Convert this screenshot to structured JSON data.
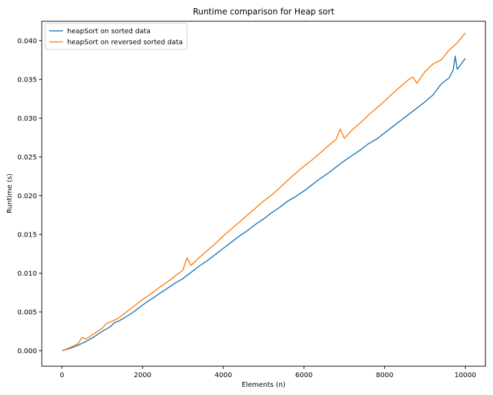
{
  "chart_data": {
    "type": "line",
    "title": "Runtime comparison for Heap sort",
    "xlabel": "Elements (n)",
    "ylabel": "Runtime (s)",
    "xlim": [
      -500,
      10500
    ],
    "ylim": [
      -0.002,
      0.0425
    ],
    "xticks": [
      0,
      2000,
      4000,
      6000,
      8000,
      10000
    ],
    "xtick_labels": [
      "0",
      "2000",
      "4000",
      "6000",
      "8000",
      "10000"
    ],
    "yticks": [
      0.0,
      0.005,
      0.01,
      0.015,
      0.02,
      0.025,
      0.03,
      0.035,
      0.04
    ],
    "ytick_labels": [
      "0.000",
      "0.005",
      "0.010",
      "0.015",
      "0.020",
      "0.025",
      "0.030",
      "0.035",
      "0.040"
    ],
    "grid": false,
    "legend_position": "top-left",
    "series": [
      {
        "name": "heapSort on sorted data",
        "color": "#1f77b4",
        "points": [
          [
            0,
            0.0
          ],
          [
            200,
            0.0003
          ],
          [
            400,
            0.0007
          ],
          [
            600,
            0.0012
          ],
          [
            800,
            0.0018
          ],
          [
            1000,
            0.0025
          ],
          [
            1200,
            0.0031
          ],
          [
            1300,
            0.0036
          ],
          [
            1400,
            0.0038
          ],
          [
            1500,
            0.0041
          ],
          [
            1600,
            0.0044
          ],
          [
            1800,
            0.0051
          ],
          [
            2000,
            0.0059
          ],
          [
            2200,
            0.0066
          ],
          [
            2400,
            0.0073
          ],
          [
            2600,
            0.008
          ],
          [
            2800,
            0.0087
          ],
          [
            3000,
            0.0093
          ],
          [
            3200,
            0.0101
          ],
          [
            3400,
            0.0109
          ],
          [
            3600,
            0.0116
          ],
          [
            3800,
            0.0124
          ],
          [
            4000,
            0.0132
          ],
          [
            4200,
            0.014
          ],
          [
            4400,
            0.0148
          ],
          [
            4600,
            0.0155
          ],
          [
            4800,
            0.0163
          ],
          [
            5000,
            0.017
          ],
          [
            5200,
            0.0178
          ],
          [
            5400,
            0.0185
          ],
          [
            5600,
            0.0193
          ],
          [
            5800,
            0.0199
          ],
          [
            6000,
            0.0206
          ],
          [
            6200,
            0.0214
          ],
          [
            6400,
            0.0222
          ],
          [
            6600,
            0.0229
          ],
          [
            6800,
            0.0237
          ],
          [
            7000,
            0.0245
          ],
          [
            7200,
            0.0252
          ],
          [
            7400,
            0.0259
          ],
          [
            7600,
            0.0267
          ],
          [
            7800,
            0.0273
          ],
          [
            8000,
            0.0281
          ],
          [
            8200,
            0.0289
          ],
          [
            8400,
            0.0297
          ],
          [
            8600,
            0.0305
          ],
          [
            8800,
            0.0313
          ],
          [
            9000,
            0.0321
          ],
          [
            9200,
            0.033
          ],
          [
            9400,
            0.0344
          ],
          [
            9600,
            0.0352
          ],
          [
            9700,
            0.0362
          ],
          [
            9750,
            0.038
          ],
          [
            9800,
            0.0363
          ],
          [
            9900,
            0.037
          ],
          [
            10000,
            0.0377
          ]
        ]
      },
      {
        "name": "heapSort on reversed sorted data",
        "color": "#ff7f0e",
        "points": [
          [
            0,
            0.0
          ],
          [
            200,
            0.0004
          ],
          [
            400,
            0.0009
          ],
          [
            500,
            0.0017
          ],
          [
            600,
            0.0015
          ],
          [
            800,
            0.0022
          ],
          [
            1000,
            0.0029
          ],
          [
            1100,
            0.0035
          ],
          [
            1200,
            0.0037
          ],
          [
            1400,
            0.0042
          ],
          [
            1600,
            0.005
          ],
          [
            1800,
            0.0058
          ],
          [
            2000,
            0.0066
          ],
          [
            2200,
            0.0073
          ],
          [
            2400,
            0.0081
          ],
          [
            2600,
            0.0088
          ],
          [
            2800,
            0.0096
          ],
          [
            3000,
            0.0104
          ],
          [
            3100,
            0.012
          ],
          [
            3200,
            0.011
          ],
          [
            3400,
            0.012
          ],
          [
            3600,
            0.0129
          ],
          [
            3800,
            0.0138
          ],
          [
            4000,
            0.0148
          ],
          [
            4200,
            0.0157
          ],
          [
            4400,
            0.0166
          ],
          [
            4600,
            0.0175
          ],
          [
            4800,
            0.0184
          ],
          [
            5000,
            0.0193
          ],
          [
            5200,
            0.0201
          ],
          [
            5400,
            0.021
          ],
          [
            5600,
            0.022
          ],
          [
            5800,
            0.0229
          ],
          [
            6000,
            0.0238
          ],
          [
            6200,
            0.0246
          ],
          [
            6400,
            0.0255
          ],
          [
            6600,
            0.0264
          ],
          [
            6800,
            0.0273
          ],
          [
            6900,
            0.0286
          ],
          [
            7000,
            0.0274
          ],
          [
            7200,
            0.0285
          ],
          [
            7400,
            0.0294
          ],
          [
            7600,
            0.0304
          ],
          [
            7800,
            0.0313
          ],
          [
            8000,
            0.0322
          ],
          [
            8200,
            0.0332
          ],
          [
            8400,
            0.0341
          ],
          [
            8600,
            0.035
          ],
          [
            8700,
            0.0353
          ],
          [
            8800,
            0.0345
          ],
          [
            9000,
            0.036
          ],
          [
            9200,
            0.037
          ],
          [
            9400,
            0.0375
          ],
          [
            9600,
            0.0388
          ],
          [
            9800,
            0.0397
          ],
          [
            10000,
            0.041
          ]
        ]
      }
    ]
  }
}
